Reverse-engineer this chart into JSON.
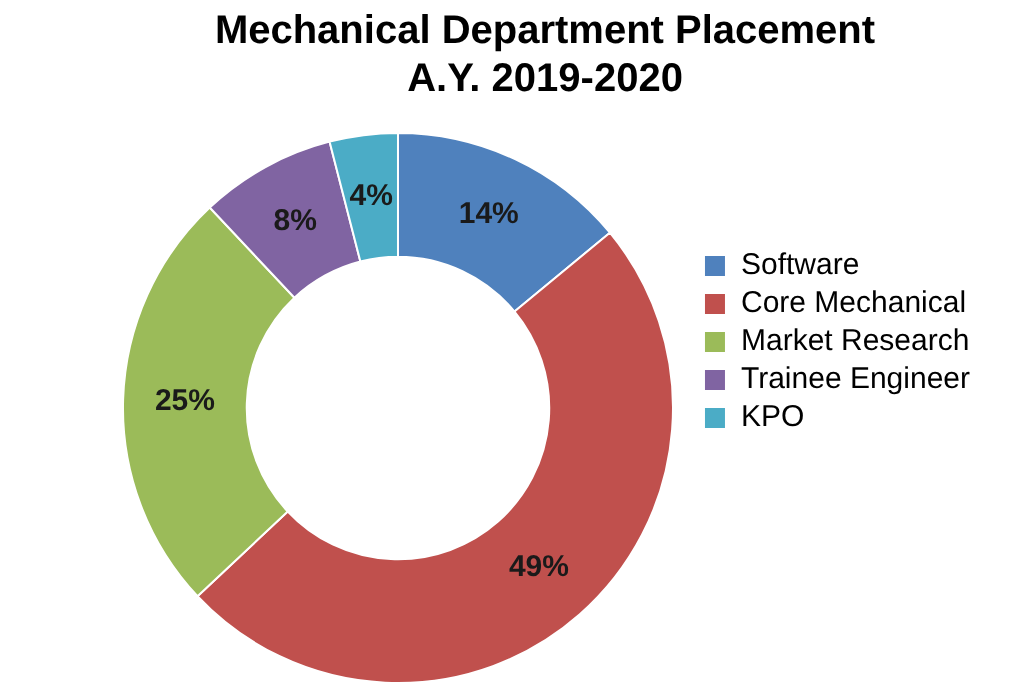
{
  "chart_data": {
    "type": "donut",
    "title": "Mechanical Department Placement",
    "subtitle": "A.Y. 2019-2020",
    "categories": [
      "Software",
      "Core Mechanical",
      "Market Research",
      "Trainee Engineer",
      "KPO"
    ],
    "values": [
      14,
      49,
      25,
      8,
      4
    ],
    "value_labels": [
      "14%",
      "49%",
      "25%",
      "8%",
      "4%"
    ],
    "colors": [
      "#4f81bd",
      "#c0504d",
      "#9bbb59",
      "#8064a2",
      "#4bacc6"
    ],
    "legend": "right"
  }
}
